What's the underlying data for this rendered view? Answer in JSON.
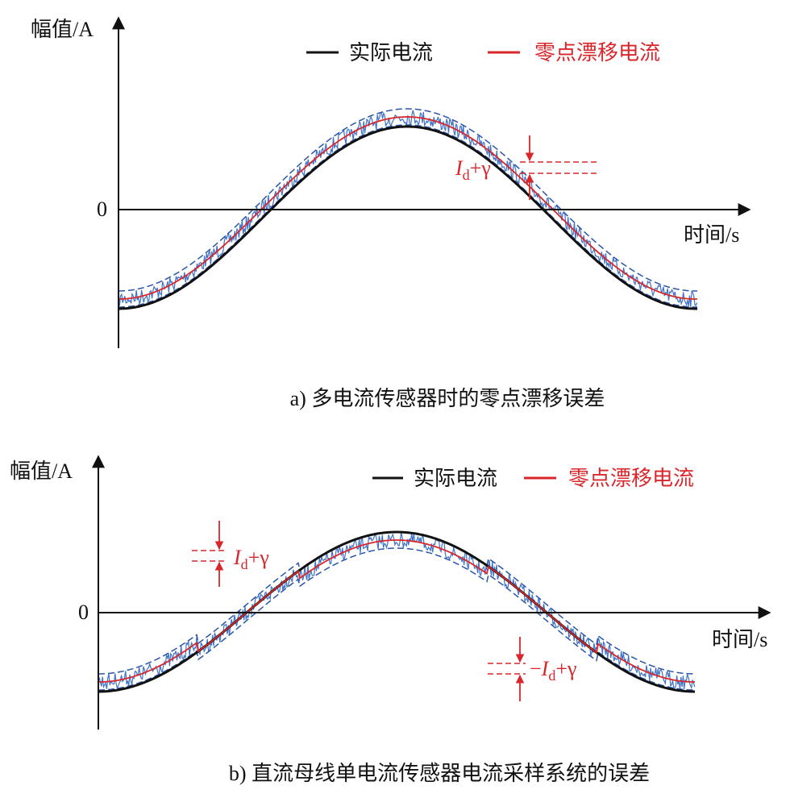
{
  "panel_a": {
    "y_axis_label": "幅值/A",
    "zero_label": "0",
    "x_axis_label": "时间/s",
    "legend": [
      "实际电流",
      "零点漂移电流"
    ],
    "annotation": {
      "italic": "I",
      "sub": "d",
      "rest": "+γ"
    },
    "caption": "a) 多电流传感器时的零点漂移误差"
  },
  "panel_b": {
    "y_axis_label": "幅值/A",
    "zero_label": "0",
    "x_axis_label": "时间/s",
    "legend": [
      "实际电流",
      "零点漂移电流"
    ],
    "annotation_1": {
      "italic": "I",
      "sub": "d",
      "rest": "+γ"
    },
    "annotation_2": {
      "sign": "−",
      "italic": "I",
      "sub": "d",
      "rest": "+γ"
    },
    "caption": "b) 直流母线单电流传感器电流采样系统的误差"
  }
}
